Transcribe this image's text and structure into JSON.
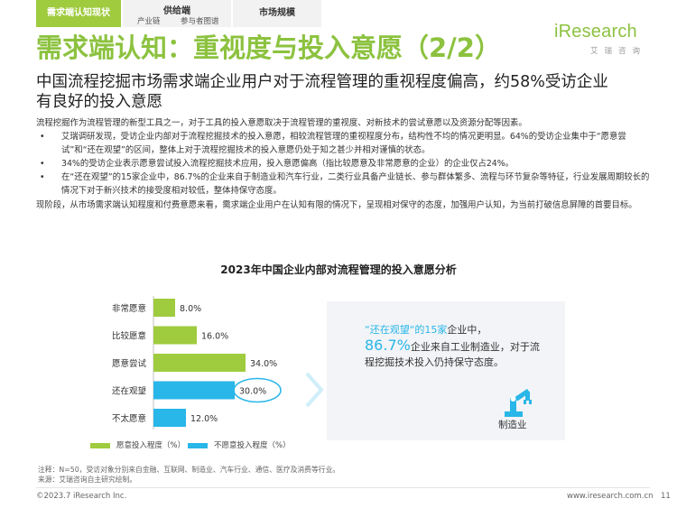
{
  "nav": {
    "active_tab": "需求端认知现状",
    "group_tab": {
      "title": "供给端",
      "items": [
        "产业链",
        "参与者图谱"
      ]
    },
    "plain_tab": "市场规模"
  },
  "logo": {
    "brand": "iResearch",
    "cn": "艾瑞咨询"
  },
  "title": "需求端认知：重视度与投入意愿（2/2）",
  "subtitle": "中国流程挖掘市场需求端企业用户对于流程管理的重视程度偏高，约58%受访企业有良好的投入意愿",
  "body": {
    "intro": "流程挖掘作为流程管理的新型工具之一，对于工具的投入意愿取决于流程管理的重视度、对新技术的尝试意愿以及资源分配等因素。",
    "bullets": [
      "艾瑞调研发现，受访企业内部对于流程挖掘技术的投入意愿，相较流程管理的重视程度分布，结构性不均的情况更明显。64%的受访企业集中于“愿意尝试”和“还在观望”的区间，整体上对于流程挖掘技术的投入意愿仍处于知之甚少并相对谨慎的状态。",
      "34%的受访企业表示愿意尝试投入流程挖掘技术应用，投入意愿偏高（指比较愿意及非常愿意的企业）的企业仅占24%。",
      "在“还在观望”的15家企业中，86.7%的企业来自于制造业和汽车行业，二类行业具备产业链长、参与群体繁多、流程与环节复杂等特征，行业发展周期较长的情况下对于新兴技术的接受度相对较低，整体持保守态度。"
    ],
    "conclusion": "现阶段，从市场需求端认知程度和付费意愿来看，需求端企业用户在认知有限的情况下，呈现相对保守的态度，加强用户认知，为当前打破信息屏障的首要目标。",
    "bullet_glyph": "•"
  },
  "chart_data": {
    "type": "bar",
    "orientation": "horizontal",
    "title": "2023年中国企业内部对流程管理的投入意愿分析",
    "categories": [
      "非常愿意",
      "比较愿意",
      "愿意尝试",
      "还在观望",
      "不太愿意"
    ],
    "values": [
      8.0,
      16.0,
      34.0,
      30.0,
      12.0
    ],
    "value_labels": [
      "8.0%",
      "16.0%",
      "34.0%",
      "30.0%",
      "12.0%"
    ],
    "series_index": [
      0,
      0,
      0,
      1,
      1
    ],
    "series": [
      {
        "name": "愿意投入程度（%）",
        "color": "#9fcb3e"
      },
      {
        "name": "不愿意投入程度（%）",
        "color": "#29b6e8"
      }
    ],
    "highlight_category": "还在观望",
    "highlight_color": "#29b6e8",
    "axis_color": "#c0c0c0",
    "legend": "bottom"
  },
  "callout": {
    "line1_prefix": "“还在观望“的",
    "line1_count": "15家",
    "line1_suffix": "企业中，",
    "percent": "86.7%",
    "line2_rest": "企业来自工业制造业，对于流程挖掘技术投入仍持保守态度。",
    "icon_label": "制造业"
  },
  "notes": {
    "note": "注释：N=50，受访对象分别来自金融、互联网、制造业、汽车行业、通信、医疗及消费等行业。",
    "source": "来源：艾瑞咨询自主研究绘制。"
  },
  "footer": {
    "copyright": "©2023.7 iResearch Inc.",
    "url": "www.iresearch.com.cn",
    "page": "11"
  }
}
